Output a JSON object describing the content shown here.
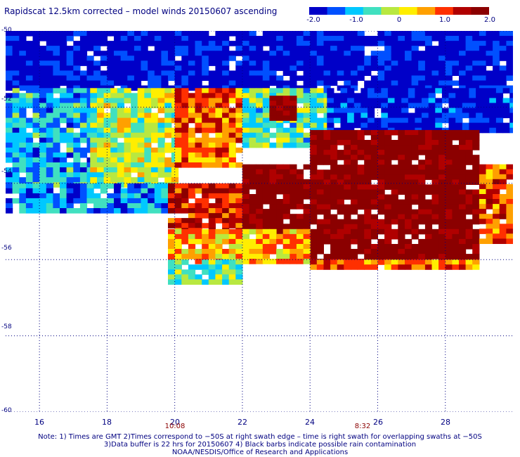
{
  "title": "Rapidscat 12.5km corrected – model winds 20150607 ascending",
  "colorbar": {
    "labels": [
      "-2.0",
      "-1.0",
      "0",
      "1.0",
      "2.0"
    ],
    "range": [
      -2.0,
      2.0
    ],
    "colors": [
      "#0000c8",
      "#0050ff",
      "#00c8ff",
      "#40e0c0",
      "#b8e840",
      "#ffee00",
      "#ffa000",
      "#ff3000",
      "#b00000",
      "#8b0000"
    ]
  },
  "map": {
    "lon_range": [
      15,
      30
    ],
    "lat_range": [
      -60,
      -50
    ],
    "lon_ticks": [
      "16",
      "18",
      "20",
      "22",
      "24",
      "26",
      "28"
    ],
    "lat_ticks": [
      "-50",
      "-52",
      "-54",
      "-56",
      "-58",
      "-60"
    ],
    "grid": true
  },
  "times": [
    {
      "label": "10:08",
      "lon": 20
    },
    {
      "label": "8:32",
      "lon": 26
    }
  ],
  "notes": {
    "line1": "Note: 1) Times are GMT 2)Times correspond to −50S at right swath edge – time is right swath for overlapping swaths at −50S",
    "line2": "3)Data buffer is 22 hrs for 20150607 4) Black barbs indicate possible rain contamination",
    "line3": "NOAA/NESDIS/Office of Research and Applications"
  },
  "chart_data": {
    "type": "heatmap",
    "title": "Rapidscat 12.5km corrected – model winds 20150607 ascending",
    "xlabel": "",
    "ylabel": "",
    "xlim": [
      15,
      30
    ],
    "ylim": [
      -60,
      -50
    ],
    "value_range": [
      -2.0,
      2.0
    ],
    "regions": [
      {
        "lon": [
          15,
          30
        ],
        "lat": [
          -51.5,
          -50
        ],
        "value": -1.9
      },
      {
        "lon": [
          15,
          17.5
        ],
        "lat": [
          -54,
          -51.5
        ],
        "value": -1.0
      },
      {
        "lon": [
          17.5,
          20
        ],
        "lat": [
          -54,
          -51.5
        ],
        "value": -0.2
      },
      {
        "lon": [
          20,
          22
        ],
        "lat": [
          -53.5,
          -51.5
        ],
        "value": 0.9
      },
      {
        "lon": [
          22,
          24.5
        ],
        "lat": [
          -53,
          -51.5
        ],
        "value": -0.6
      },
      {
        "lon": [
          22.8,
          23.6
        ],
        "lat": [
          -52.3,
          -51.7
        ],
        "value": 2.0
      },
      {
        "lon": [
          24.5,
          30
        ],
        "lat": [
          -52.6,
          -51.5
        ],
        "value": -1.8
      },
      {
        "lon": [
          15,
          20
        ],
        "lat": [
          -54.7,
          -54
        ],
        "value": -1.2
      },
      {
        "lon": [
          19.8,
          22
        ],
        "lat": [
          -55.3,
          -54
        ],
        "value": 1.3
      },
      {
        "lon": [
          22,
          24
        ],
        "lat": [
          -55.2,
          -53.5
        ],
        "value": 2.0
      },
      {
        "lon": [
          24,
          29
        ],
        "lat": [
          -56,
          -52.6
        ],
        "value": 2.0
      },
      {
        "lon": [
          29,
          30
        ],
        "lat": [
          -55.5,
          -53.5
        ],
        "value": 1.0
      },
      {
        "lon": [
          19.8,
          24
        ],
        "lat": [
          -56,
          -55.2
        ],
        "value": 0.5
      },
      {
        "lon": [
          24,
          29
        ],
        "lat": [
          -56.2,
          -56
        ],
        "value": 0.8
      },
      {
        "lon": [
          19.8,
          22
        ],
        "lat": [
          -56.6,
          -56
        ],
        "value": -0.4
      }
    ]
  }
}
